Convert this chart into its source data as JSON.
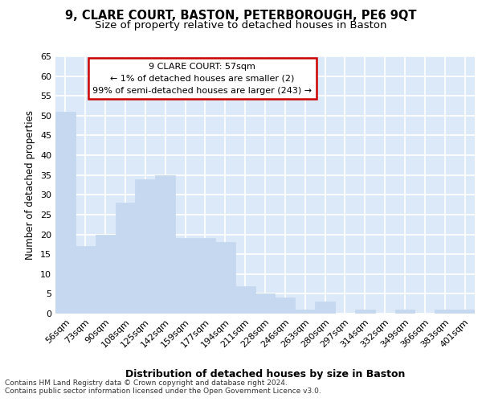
{
  "title1": "9, CLARE COURT, BASTON, PETERBOROUGH, PE6 9QT",
  "title2": "Size of property relative to detached houses in Baston",
  "xlabel": "Distribution of detached houses by size in Baston",
  "ylabel": "Number of detached properties",
  "categories": [
    "56sqm",
    "73sqm",
    "90sqm",
    "108sqm",
    "125sqm",
    "142sqm",
    "159sqm",
    "177sqm",
    "194sqm",
    "211sqm",
    "228sqm",
    "246sqm",
    "263sqm",
    "280sqm",
    "297sqm",
    "314sqm",
    "332sqm",
    "349sqm",
    "366sqm",
    "383sqm",
    "401sqm"
  ],
  "values": [
    51,
    17,
    20,
    28,
    34,
    35,
    19,
    19,
    18,
    7,
    5,
    4,
    1,
    3,
    0,
    1,
    0,
    1,
    0,
    1,
    1
  ],
  "bar_color": "#c5d8ef",
  "bar_edge_color": "#c5d8ef",
  "annotation_box_text": "9 CLARE COURT: 57sqm\n← 1% of detached houses are smaller (2)\n99% of semi-detached houses are larger (243) →",
  "annotation_box_facecolor": "#ffffff",
  "annotation_box_edgecolor": "#cc0000",
  "ylim": [
    0,
    65
  ],
  "yticks": [
    0,
    5,
    10,
    15,
    20,
    25,
    30,
    35,
    40,
    45,
    50,
    55,
    60,
    65
  ],
  "axes_background": "#dce9f8",
  "grid_color": "#ffffff",
  "footer1": "Contains HM Land Registry data © Crown copyright and database right 2024.",
  "footer2": "Contains public sector information licensed under the Open Government Licence v3.0.",
  "title1_fontsize": 10.5,
  "title2_fontsize": 9.5,
  "tick_fontsize": 8,
  "ylabel_fontsize": 8.5,
  "xlabel_fontsize": 9,
  "ann_fontsize": 8,
  "footer_fontsize": 6.5
}
